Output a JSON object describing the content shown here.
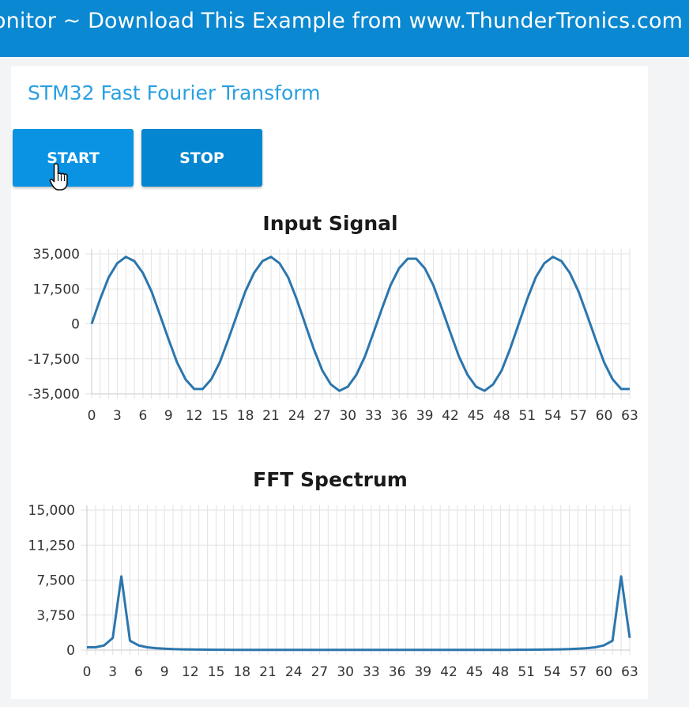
{
  "banner": {
    "text": "Monitor ~ Download This Example from www.ThunderTronics.com"
  },
  "app": {
    "title": "STM32 Fast Fourier Transform"
  },
  "controls": {
    "start_label": "START",
    "stop_label": "STOP"
  },
  "colors": {
    "banner": "#0a88d1",
    "title": "#2a9fe0",
    "button": "#0a93e3",
    "series": "#2b76ad"
  },
  "chart_data": [
    {
      "type": "line",
      "title": "Input Signal",
      "xlabel": "",
      "ylabel": "",
      "ylim": [
        -35000,
        35000
      ],
      "yticks": [
        35000,
        17500,
        0,
        -17500,
        -35000
      ],
      "ytick_labels": [
        "35,000",
        "17,500",
        "0",
        "-17,500",
        "-35,000"
      ],
      "xticks": [
        0,
        3,
        6,
        9,
        12,
        15,
        18,
        21,
        24,
        27,
        30,
        33,
        36,
        39,
        42,
        45,
        48,
        51,
        54,
        57,
        60,
        63
      ],
      "xtick_labels": [
        "0",
        "3",
        "6",
        "9",
        "12",
        "15",
        "18",
        "21",
        "24",
        "27",
        "30",
        "33",
        "36",
        "39",
        "42",
        "45",
        "48",
        "51",
        "54",
        "57",
        "60",
        "63"
      ],
      "grid": true,
      "x": [
        0,
        1,
        2,
        3,
        4,
        5,
        6,
        7,
        8,
        9,
        10,
        11,
        12,
        13,
        14,
        15,
        16,
        17,
        18,
        19,
        20,
        21,
        22,
        23,
        24,
        25,
        26,
        27,
        28,
        29,
        30,
        31,
        32,
        33,
        34,
        35,
        36,
        37,
        38,
        39,
        40,
        41,
        42,
        43,
        44,
        45,
        46,
        47,
        48,
        49,
        50,
        51,
        52,
        53,
        54,
        55,
        56,
        57,
        58,
        59,
        60,
        61,
        62,
        63
      ],
      "series": [
        {
          "values": [
            0,
            12400,
            23300,
            30300,
            33500,
            31400,
            25400,
            16300,
            4400,
            -7700,
            -19300,
            -27800,
            -32600,
            -32600,
            -27800,
            -19300,
            -7700,
            4400,
            16300,
            25400,
            31400,
            33500,
            30300,
            23300,
            12400,
            0,
            -12400,
            -23300,
            -30300,
            -33500,
            -31400,
            -25400,
            -16300,
            -4400,
            7700,
            19300,
            27800,
            32600,
            32600,
            27800,
            19300,
            7700,
            -4400,
            -16300,
            -25400,
            -31400,
            -33500,
            -30300,
            -23300,
            -12400,
            0,
            12400,
            23300,
            30300,
            33500,
            31400,
            25400,
            16300,
            4400,
            -7700,
            -19300,
            -27800,
            -32600,
            -32600
          ]
        }
      ]
    },
    {
      "type": "line",
      "title": "FFT Spectrum",
      "xlabel": "",
      "ylabel": "",
      "ylim": [
        0,
        15000
      ],
      "yticks": [
        15000,
        11250,
        7500,
        3750,
        0
      ],
      "ytick_labels": [
        "15,000",
        "11,250",
        "7,500",
        "3,750",
        "0"
      ],
      "xticks": [
        0,
        3,
        6,
        9,
        12,
        15,
        18,
        21,
        24,
        27,
        30,
        33,
        36,
        39,
        42,
        45,
        48,
        51,
        54,
        57,
        60,
        63
      ],
      "xtick_labels": [
        "0",
        "3",
        "6",
        "9",
        "12",
        "15",
        "18",
        "21",
        "24",
        "27",
        "30",
        "33",
        "36",
        "39",
        "42",
        "45",
        "48",
        "51",
        "54",
        "57",
        "60",
        "63"
      ],
      "grid": true,
      "x": [
        0,
        1,
        2,
        3,
        4,
        5,
        6,
        7,
        8,
        9,
        10,
        11,
        12,
        13,
        14,
        15,
        16,
        17,
        18,
        19,
        20,
        21,
        22,
        23,
        24,
        25,
        26,
        27,
        28,
        29,
        30,
        31,
        32,
        33,
        34,
        35,
        36,
        37,
        38,
        39,
        40,
        41,
        42,
        43,
        44,
        45,
        46,
        47,
        48,
        49,
        50,
        51,
        52,
        53,
        54,
        55,
        56,
        57,
        58,
        59,
        60,
        61,
        62,
        63
      ],
      "series": [
        {
          "values": [
            300,
            300,
            500,
            1300,
            7900,
            1000,
            500,
            300,
            200,
            150,
            100,
            80,
            60,
            50,
            40,
            30,
            30,
            20,
            20,
            20,
            20,
            20,
            20,
            20,
            20,
            20,
            20,
            20,
            20,
            20,
            20,
            20,
            20,
            20,
            20,
            20,
            20,
            20,
            20,
            20,
            20,
            20,
            20,
            20,
            20,
            20,
            20,
            20,
            20,
            20,
            30,
            30,
            40,
            50,
            60,
            80,
            100,
            150,
            200,
            300,
            500,
            1000,
            7900,
            1300
          ]
        }
      ]
    }
  ]
}
